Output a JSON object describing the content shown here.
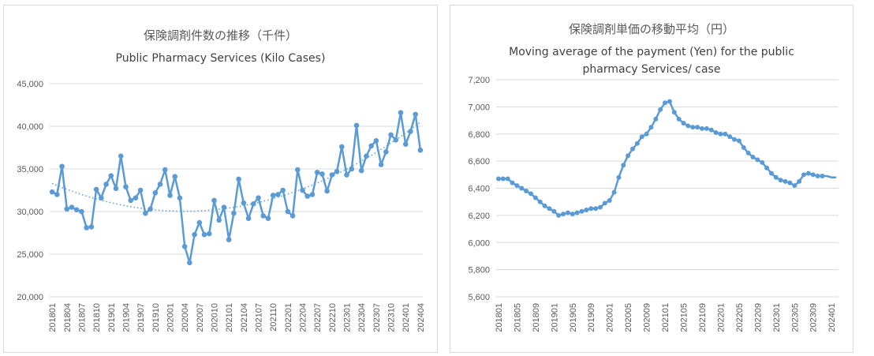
{
  "chart_data": [
    {
      "type": "line",
      "title": "保険調剤件数の推移（千件）",
      "subtitle": "Public Pharmacy Services (Kilo Cases)",
      "ylim": [
        20000,
        45000
      ],
      "yticks": [
        "20,000",
        "25,000",
        "30,000",
        "35,000",
        "40,000",
        "45,000"
      ],
      "xticks": [
        "201801",
        "201804",
        "201807",
        "201810",
        "201901",
        "201904",
        "201907",
        "201910",
        "202001",
        "202004",
        "202007",
        "202010",
        "202101",
        "202104",
        "202107",
        "202110",
        "202201",
        "202204",
        "202207",
        "202210",
        "202301",
        "202304",
        "202307",
        "202310",
        "202401",
        "202404"
      ],
      "grid": true,
      "trendline": "polynomial (dotted)",
      "series": [
        {
          "x_start": "2018-01",
          "values": [
            32300,
            32000,
            35300,
            30300,
            30500,
            30200,
            30000,
            28100,
            28200,
            32600,
            31600,
            33200,
            34200,
            32700,
            36500,
            32900,
            31300,
            31600,
            32500,
            29800,
            30300,
            32200,
            33200,
            34900,
            31900,
            34100,
            31600,
            25900,
            24000,
            27300,
            28700,
            27300,
            27400,
            31300,
            29000,
            30500,
            26700,
            29800,
            33800,
            31000,
            29200,
            30900,
            31600,
            29500,
            29200,
            31900,
            32000,
            32500,
            30000,
            29500,
            34900,
            32500,
            31800,
            32000,
            34600,
            34400,
            32400,
            34300,
            34700,
            37600,
            34300,
            35000,
            40100,
            34800,
            36500,
            37700,
            38300,
            35500,
            37000,
            39000,
            38400,
            41600,
            37900,
            39400,
            41400,
            37200
          ]
        }
      ],
      "color": "#5b9bd5"
    },
    {
      "type": "line",
      "title": "保険調剤単価の移動平均（円）",
      "subtitle_lines": [
        "Moving average of the payment (Yen) for the public",
        "pharmacy Services/ case"
      ],
      "ylim": [
        5600,
        7200
      ],
      "yticks": [
        "5,600",
        "5,800",
        "6,000",
        "6,200",
        "6,400",
        "6,600",
        "6,800",
        "7,000",
        "7,200"
      ],
      "xticks": [
        "201801",
        "201805",
        "201809",
        "201901",
        "201905",
        "201909",
        "202001",
        "202005",
        "202009",
        "202101",
        "202105",
        "202109",
        "202201",
        "202205",
        "202209",
        "202301",
        "202305",
        "202309",
        "202401"
      ],
      "grid": true,
      "series": [
        {
          "x_start": "2018-01",
          "values": [
            6470,
            6470,
            6470,
            6440,
            6420,
            6400,
            6380,
            6360,
            6330,
            6300,
            6270,
            6250,
            6230,
            6200,
            6210,
            6220,
            6210,
            6220,
            6230,
            6240,
            6250,
            6250,
            6260,
            6290,
            6310,
            6370,
            6480,
            6570,
            6640,
            6690,
            6730,
            6780,
            6800,
            6850,
            6910,
            6980,
            7030,
            7040,
            6960,
            6910,
            6880,
            6860,
            6850,
            6850,
            6840,
            6840,
            6830,
            6810,
            6800,
            6800,
            6780,
            6760,
            6750,
            6700,
            6660,
            6630,
            6610,
            6590,
            6550,
            6510,
            6480,
            6460,
            6450,
            6440,
            6420,
            6450,
            6500,
            6510,
            6500,
            6490,
            6490,
            6490,
            6480,
            6480
          ],
          "marker_count": 71
        }
      ],
      "color": "#5b9bd5"
    }
  ]
}
